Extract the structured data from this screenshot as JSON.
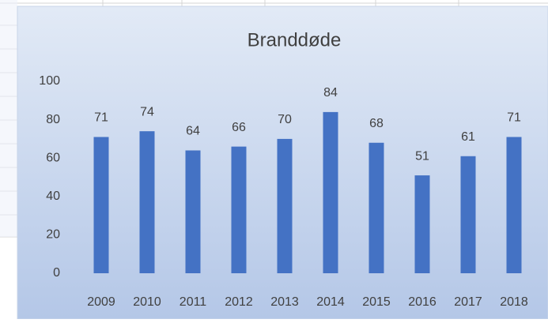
{
  "chart_data": {
    "type": "bar",
    "title": "Branddøde",
    "categories": [
      "2009",
      "2010",
      "2011",
      "2012",
      "2013",
      "2014",
      "2015",
      "2016",
      "2017",
      "2018"
    ],
    "values": [
      71,
      74,
      64,
      66,
      70,
      84,
      68,
      51,
      61,
      71
    ],
    "color": "#4472c4",
    "ylim": [
      0,
      100
    ],
    "yticks": [
      0,
      20,
      40,
      60,
      80,
      100
    ],
    "grid": false,
    "data_labels": true
  }
}
